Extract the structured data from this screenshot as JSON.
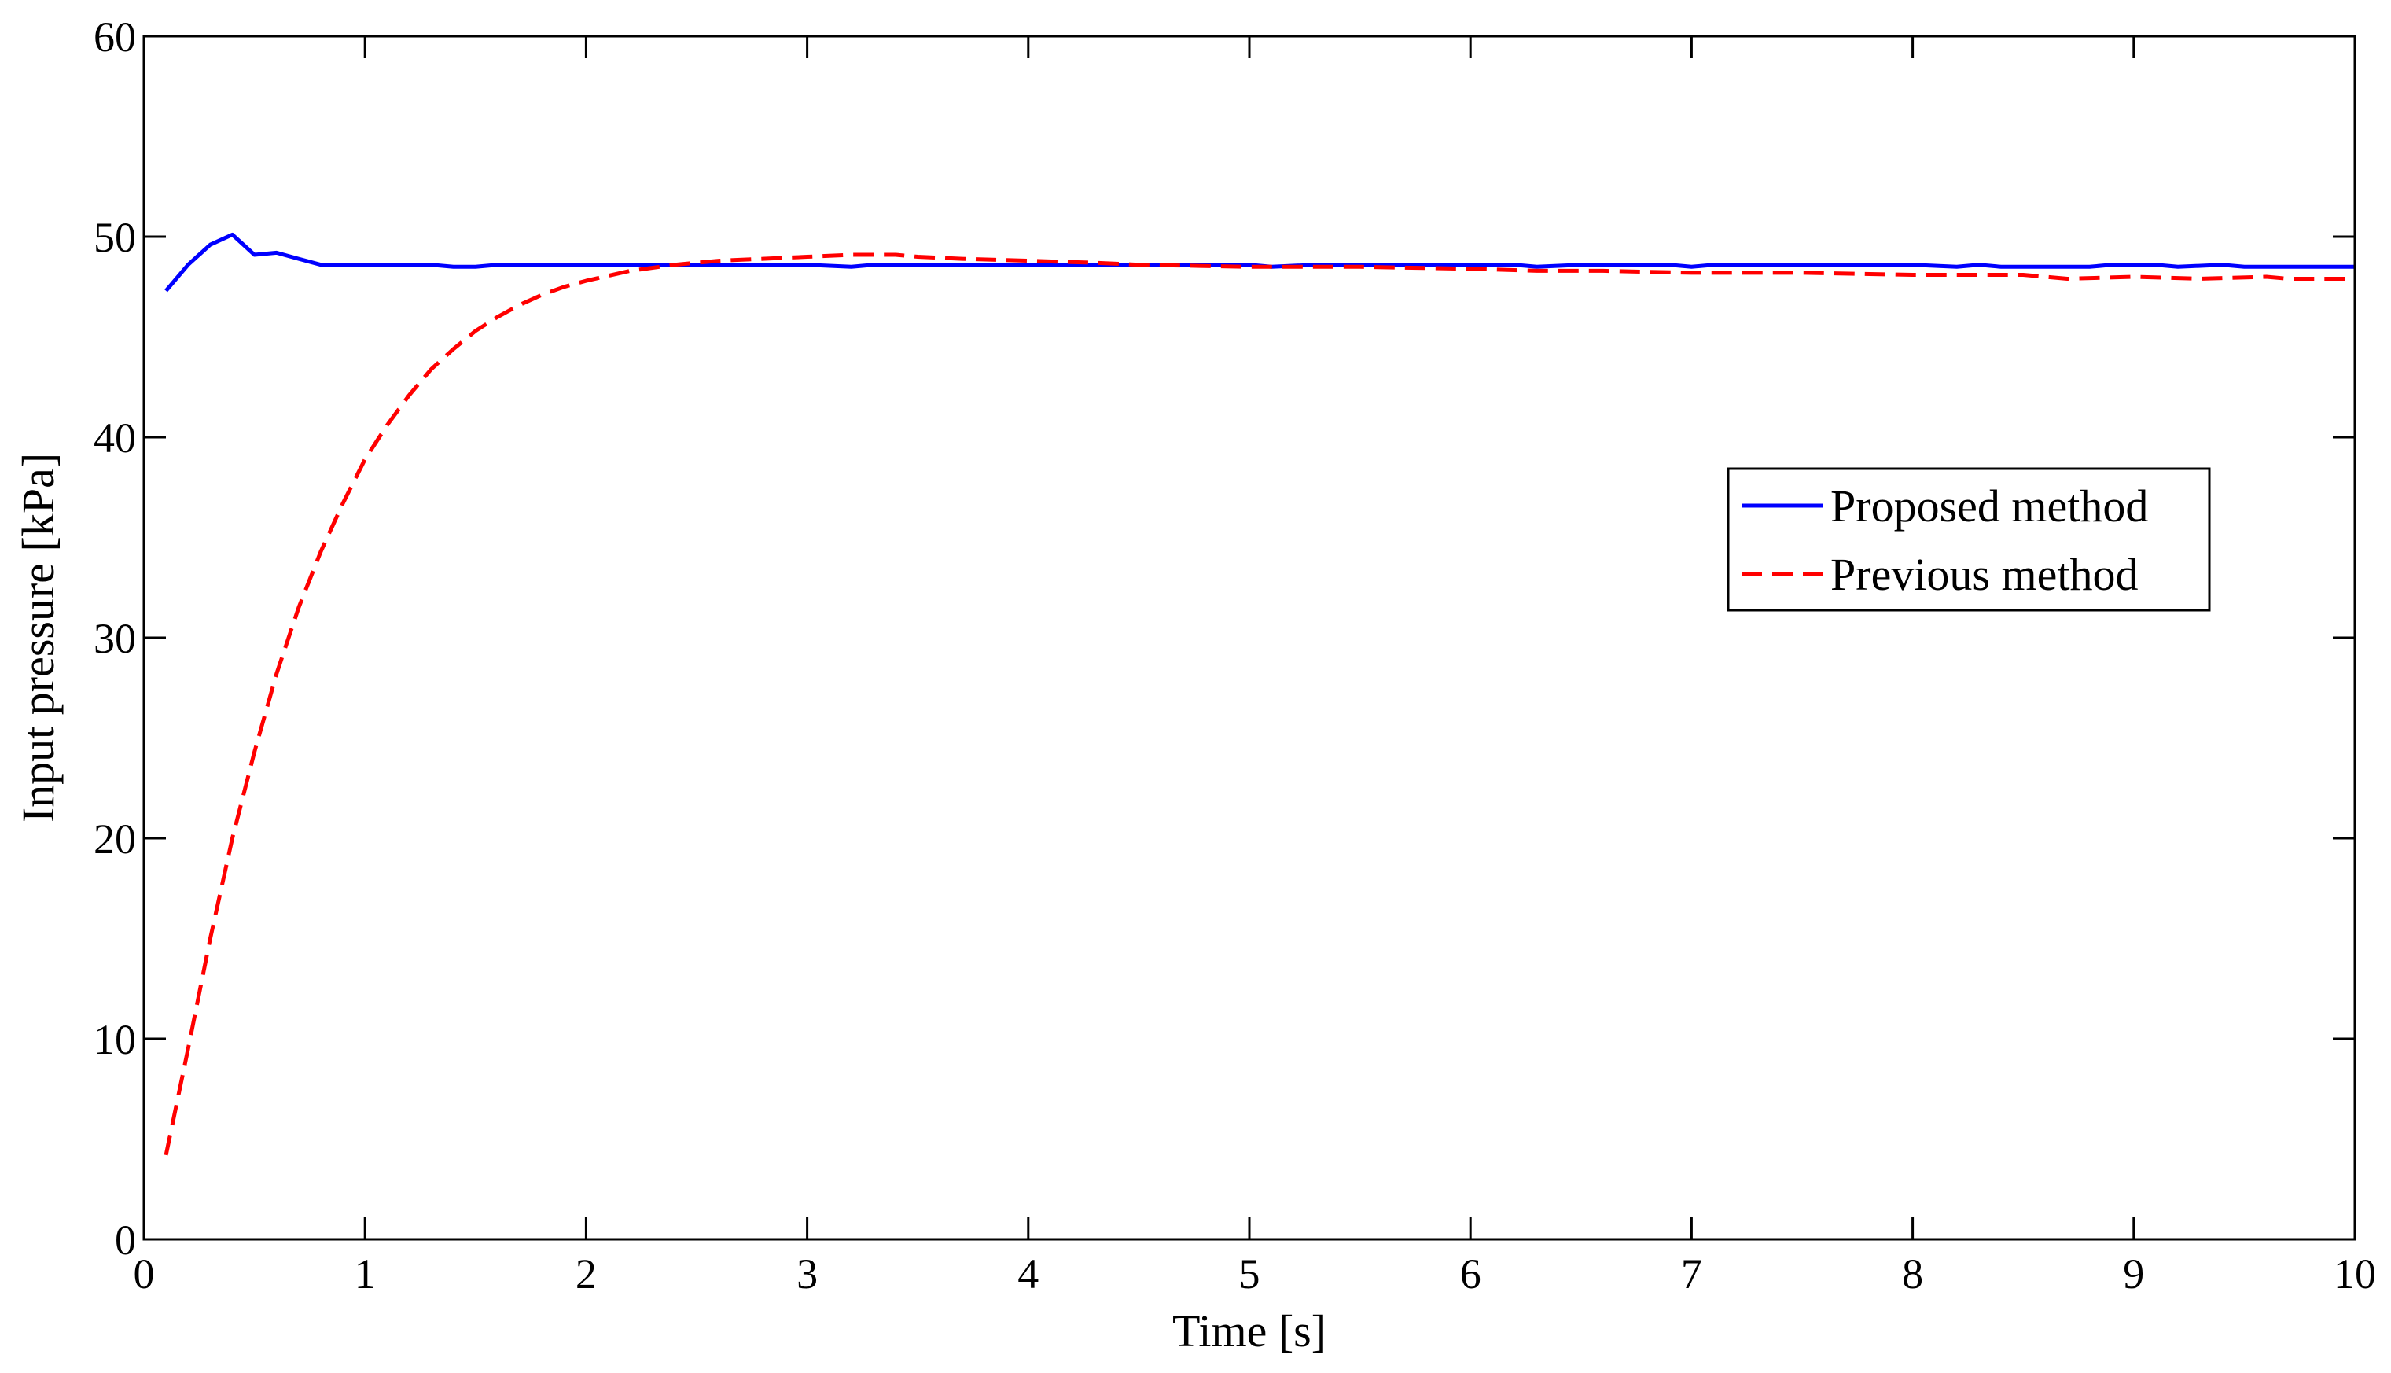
{
  "chart_data": {
    "type": "line",
    "title": "",
    "xlabel": "Time [s]",
    "ylabel": "Input pressure [kPa]",
    "xlim": [
      0,
      10
    ],
    "ylim": [
      0,
      60
    ],
    "x_ticks": [
      0,
      1,
      2,
      3,
      4,
      5,
      6,
      7,
      8,
      9,
      10
    ],
    "y_ticks": [
      0,
      10,
      20,
      30,
      40,
      50,
      60
    ],
    "grid": false,
    "legend_position": "right",
    "series": [
      {
        "name": "Proposed method",
        "color": "#0000ff",
        "style": "solid",
        "points": [
          [
            0.1,
            47.3
          ],
          [
            0.2,
            48.6
          ],
          [
            0.3,
            49.6
          ],
          [
            0.4,
            50.1
          ],
          [
            0.5,
            49.1
          ],
          [
            0.6,
            49.2
          ],
          [
            0.7,
            48.9
          ],
          [
            0.8,
            48.6
          ],
          [
            1.0,
            48.6
          ],
          [
            1.3,
            48.6
          ],
          [
            1.4,
            48.5
          ],
          [
            1.5,
            48.5
          ],
          [
            1.6,
            48.6
          ],
          [
            2.0,
            48.6
          ],
          [
            2.5,
            48.6
          ],
          [
            3.0,
            48.6
          ],
          [
            3.2,
            48.5
          ],
          [
            3.3,
            48.6
          ],
          [
            4.0,
            48.6
          ],
          [
            4.5,
            48.6
          ],
          [
            5.0,
            48.6
          ],
          [
            5.1,
            48.5
          ],
          [
            5.3,
            48.6
          ],
          [
            6.0,
            48.6
          ],
          [
            6.2,
            48.6
          ],
          [
            6.3,
            48.5
          ],
          [
            6.5,
            48.6
          ],
          [
            6.9,
            48.6
          ],
          [
            7.0,
            48.5
          ],
          [
            7.1,
            48.6
          ],
          [
            7.5,
            48.6
          ],
          [
            8.0,
            48.6
          ],
          [
            8.2,
            48.5
          ],
          [
            8.3,
            48.6
          ],
          [
            8.4,
            48.5
          ],
          [
            8.8,
            48.5
          ],
          [
            8.9,
            48.6
          ],
          [
            9.1,
            48.6
          ],
          [
            9.2,
            48.5
          ],
          [
            9.4,
            48.6
          ],
          [
            9.5,
            48.5
          ],
          [
            10.0,
            48.5
          ]
        ]
      },
      {
        "name": "Previous method",
        "color": "#ff0000",
        "style": "dashed",
        "points": [
          [
            0.1,
            4.2
          ],
          [
            0.2,
            9.5
          ],
          [
            0.3,
            15.0
          ],
          [
            0.4,
            20.0
          ],
          [
            0.5,
            24.3
          ],
          [
            0.6,
            28.2
          ],
          [
            0.7,
            31.5
          ],
          [
            0.8,
            34.3
          ],
          [
            0.9,
            36.7
          ],
          [
            1.0,
            38.9
          ],
          [
            1.1,
            40.6
          ],
          [
            1.2,
            42.1
          ],
          [
            1.3,
            43.4
          ],
          [
            1.4,
            44.4
          ],
          [
            1.5,
            45.3
          ],
          [
            1.6,
            46.0
          ],
          [
            1.7,
            46.6
          ],
          [
            1.8,
            47.1
          ],
          [
            1.9,
            47.5
          ],
          [
            2.0,
            47.8
          ],
          [
            2.2,
            48.3
          ],
          [
            2.4,
            48.6
          ],
          [
            2.6,
            48.8
          ],
          [
            2.8,
            48.9
          ],
          [
            3.0,
            49.0
          ],
          [
            3.2,
            49.1
          ],
          [
            3.4,
            49.1
          ],
          [
            3.5,
            49.0
          ],
          [
            3.7,
            48.9
          ],
          [
            4.0,
            48.8
          ],
          [
            4.3,
            48.7
          ],
          [
            4.5,
            48.6
          ],
          [
            5.0,
            48.5
          ],
          [
            5.5,
            48.5
          ],
          [
            6.0,
            48.4
          ],
          [
            6.3,
            48.3
          ],
          [
            6.6,
            48.3
          ],
          [
            7.0,
            48.2
          ],
          [
            7.5,
            48.2
          ],
          [
            8.0,
            48.1
          ],
          [
            8.3,
            48.1
          ],
          [
            8.5,
            48.1
          ],
          [
            8.7,
            47.9
          ],
          [
            9.0,
            48.0
          ],
          [
            9.3,
            47.9
          ],
          [
            9.6,
            48.0
          ],
          [
            9.7,
            47.9
          ],
          [
            10.0,
            47.9
          ]
        ]
      }
    ]
  }
}
